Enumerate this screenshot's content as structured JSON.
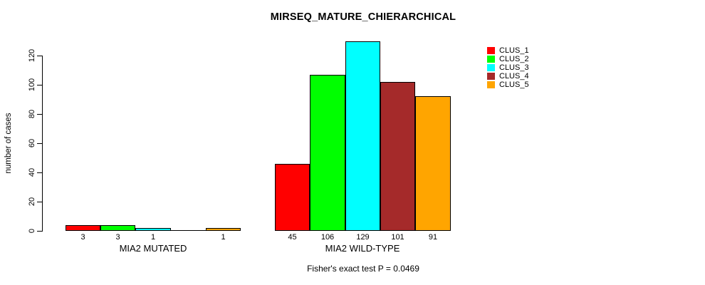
{
  "title": "MIRSEQ_MATURE_CHIERARCHICAL",
  "footnote": "Fisher's exact test P = 0.0469",
  "chart_data": {
    "type": "bar",
    "title": "MIRSEQ_MATURE_CHIERARCHICAL",
    "xlabel": "",
    "ylabel": "number of cases",
    "ylim": [
      0,
      120
    ],
    "yticks": [
      0,
      20,
      40,
      60,
      80,
      100,
      120
    ],
    "grid": false,
    "legend_position": "top-right",
    "categories": [
      "MIA2 MUTATED",
      "MIA2 WILD-TYPE"
    ],
    "series": [
      {
        "name": "CLUS_1",
        "color": "#ff0000",
        "values": [
          3,
          45
        ]
      },
      {
        "name": "CLUS_2",
        "color": "#00ff00",
        "values": [
          3,
          106
        ]
      },
      {
        "name": "CLUS_3",
        "color": "#00ffff",
        "values": [
          1,
          129
        ]
      },
      {
        "name": "CLUS_4",
        "color": "#a52a2a",
        "values": [
          0,
          101
        ]
      },
      {
        "name": "CLUS_5",
        "color": "#ffa500",
        "values": [
          1,
          91
        ]
      }
    ],
    "bar_value_labels_note": "each bar is labeled with its value below the baseline; zero-height bars have no label",
    "annotation": "Fisher's exact test P = 0.0469"
  }
}
